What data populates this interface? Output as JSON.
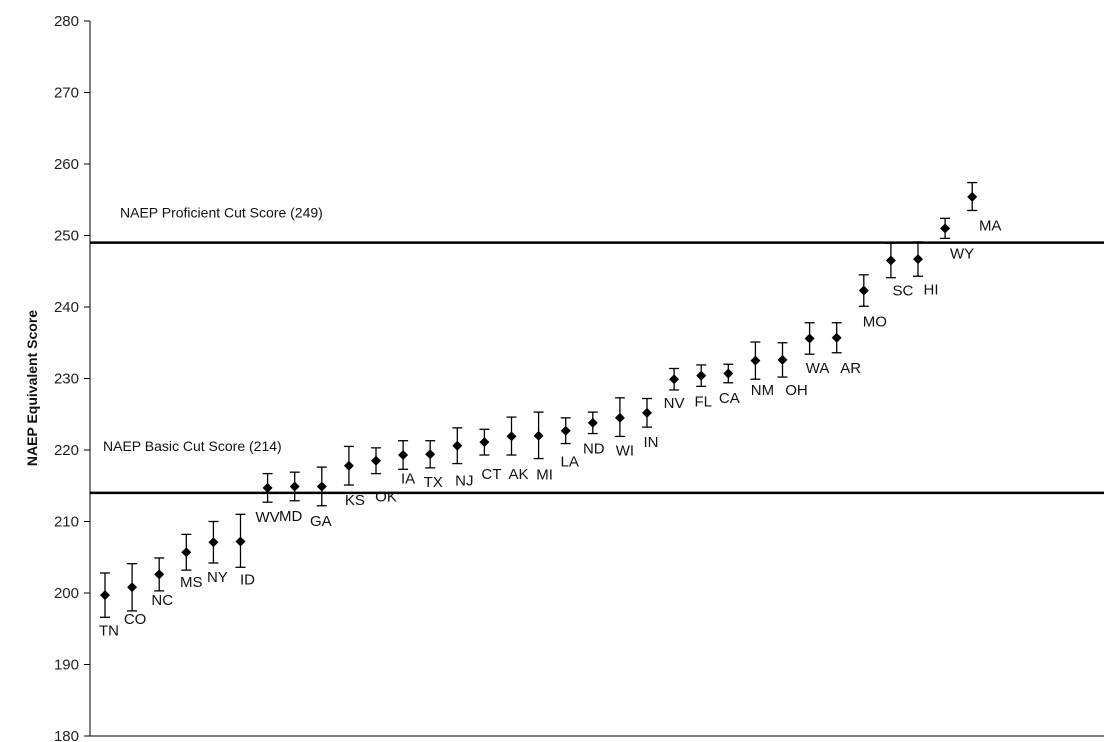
{
  "chart_data": {
    "type": "scatter",
    "title": "",
    "xlabel": "",
    "ylabel": "NAEP Equivalent Score",
    "ylim": [
      180,
      280
    ],
    "yticks": [
      180,
      190,
      200,
      210,
      220,
      230,
      240,
      250,
      260,
      270,
      280
    ],
    "grid": false,
    "legend": "none",
    "marker": "diamond",
    "error_bars": true,
    "reference_lines": [
      {
        "label": "NAEP Proficient Cut Score (249)",
        "value": 249
      },
      {
        "label": "NAEP Basic Cut Score (214)",
        "value": 214
      }
    ],
    "points": [
      {
        "state": "TN",
        "value": 199.7,
        "low": 196.6,
        "high": 202.8
      },
      {
        "state": "CO",
        "value": 200.8,
        "low": 197.5,
        "high": 204.1
      },
      {
        "state": "NC",
        "value": 202.6,
        "low": 200.3,
        "high": 204.9
      },
      {
        "state": "MS",
        "value": 205.7,
        "low": 203.2,
        "high": 208.2
      },
      {
        "state": "NY",
        "value": 207.1,
        "low": 204.2,
        "high": 210.0
      },
      {
        "state": "ID",
        "value": 207.2,
        "low": 203.6,
        "high": 211.0
      },
      {
        "state": "WV",
        "value": 214.7,
        "low": 212.7,
        "high": 216.7
      },
      {
        "state": "MD",
        "value": 214.9,
        "low": 212.9,
        "high": 216.9
      },
      {
        "state": "GA",
        "value": 214.9,
        "low": 212.2,
        "high": 217.6
      },
      {
        "state": "KS",
        "value": 217.8,
        "low": 215.1,
        "high": 220.5
      },
      {
        "state": "OK",
        "value": 218.5,
        "low": 216.7,
        "high": 220.3
      },
      {
        "state": "IA",
        "value": 219.3,
        "low": 217.3,
        "high": 221.3
      },
      {
        "state": "TX",
        "value": 219.4,
        "low": 217.5,
        "high": 221.3
      },
      {
        "state": "NJ",
        "value": 220.6,
        "low": 218.1,
        "high": 223.1
      },
      {
        "state": "CT",
        "value": 221.1,
        "low": 219.3,
        "high": 222.9
      },
      {
        "state": "AK",
        "value": 221.9,
        "low": 219.3,
        "high": 224.6
      },
      {
        "state": "MI",
        "value": 222.0,
        "low": 218.8,
        "high": 225.3
      },
      {
        "state": "LA",
        "value": 222.7,
        "low": 220.9,
        "high": 224.5
      },
      {
        "state": "ND",
        "value": 223.8,
        "low": 222.3,
        "high": 225.3
      },
      {
        "state": "WI",
        "value": 224.5,
        "low": 221.9,
        "high": 227.3
      },
      {
        "state": "IN",
        "value": 225.2,
        "low": 223.2,
        "high": 227.2
      },
      {
        "state": "NV",
        "value": 229.9,
        "low": 228.4,
        "high": 231.4
      },
      {
        "state": "FL",
        "value": 230.4,
        "low": 228.9,
        "high": 231.9
      },
      {
        "state": "CA",
        "value": 230.7,
        "low": 229.4,
        "high": 232.0
      },
      {
        "state": "NM",
        "value": 232.5,
        "low": 229.9,
        "high": 235.1
      },
      {
        "state": "OH",
        "value": 232.6,
        "low": 230.2,
        "high": 235.0
      },
      {
        "state": "WA",
        "value": 235.6,
        "low": 233.4,
        "high": 237.8
      },
      {
        "state": "AR",
        "value": 235.7,
        "low": 233.6,
        "high": 237.8
      },
      {
        "state": "MO",
        "value": 242.3,
        "low": 240.1,
        "high": 244.5
      },
      {
        "state": "SC",
        "value": 246.5,
        "low": 244.1,
        "high": 248.9
      },
      {
        "state": "HI",
        "value": 246.7,
        "low": 244.3,
        "high": 249.1
      },
      {
        "state": "WY",
        "value": 251.0,
        "low": 249.6,
        "high": 252.4
      },
      {
        "state": "MA",
        "value": 255.4,
        "low": 253.5,
        "high": 257.4
      }
    ]
  }
}
